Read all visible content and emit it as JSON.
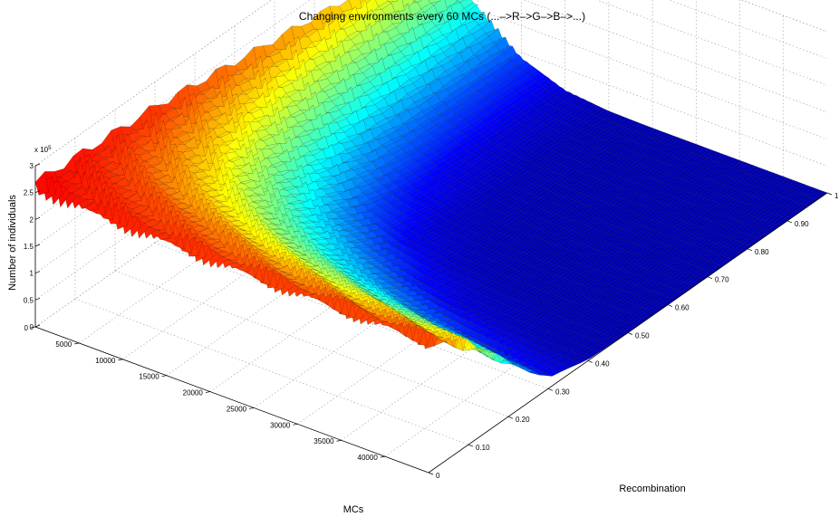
{
  "chart_data": {
    "type": "surface",
    "title": "Changing environments every 60 MCs (...–>R–>G–>B–>...)",
    "xlabel": "MCs",
    "ylabel": "Recombination",
    "zlabel": "Number of individuals",
    "z_exponent_label": "x 10",
    "z_exponent_power": "5",
    "xlim": [
      0,
      45000
    ],
    "ylim": [
      0,
      1.0
    ],
    "zlim": [
      0,
      300000
    ],
    "x_ticks": [
      "0",
      "5000",
      "10000",
      "15000",
      "20000",
      "25000",
      "30000",
      "35000",
      "40000"
    ],
    "x_tick_values": [
      0,
      5000,
      10000,
      15000,
      20000,
      25000,
      30000,
      35000,
      40000
    ],
    "y_ticks": [
      "0",
      "0.10",
      "0.20",
      "0.30",
      "0.40",
      "0.50",
      "0.60",
      "0.70",
      "0.80",
      "0.90",
      "1.00"
    ],
    "y_tick_values": [
      0,
      0.1,
      0.2,
      0.3,
      0.4,
      0.5,
      0.6,
      0.7,
      0.8,
      0.9,
      1.0
    ],
    "z_ticks": [
      "0",
      "0.5",
      "1",
      "1.5",
      "2",
      "2.5",
      "3"
    ],
    "z_tick_values": [
      0,
      50000,
      100000,
      150000,
      200000,
      250000,
      300000
    ],
    "grid": true,
    "colormap": "jet",
    "series": [
      {
        "recombination": 0.0,
        "MCs": [
          0,
          5000,
          10000,
          15000,
          20000,
          25000,
          30000,
          35000,
          40000,
          45000
        ],
        "values": [
          260000,
          255000,
          252000,
          250000,
          248000,
          247000,
          246000,
          246000,
          245000,
          245000
        ]
      },
      {
        "recombination": 0.1,
        "MCs": [
          0,
          5000,
          10000,
          15000,
          20000,
          25000,
          30000,
          35000,
          40000,
          45000
        ],
        "values": [
          255000,
          245000,
          235000,
          225000,
          215000,
          205000,
          198000,
          192000,
          188000,
          185000
        ]
      },
      {
        "recombination": 0.2,
        "MCs": [
          0,
          5000,
          10000,
          15000,
          20000,
          25000,
          30000,
          35000,
          40000,
          45000
        ],
        "values": [
          250000,
          225000,
          200000,
          180000,
          160000,
          145000,
          130000,
          120000,
          110000,
          100000
        ]
      },
      {
        "recombination": 0.3,
        "MCs": [
          0,
          5000,
          10000,
          15000,
          20000,
          25000,
          30000,
          35000,
          40000,
          45000
        ],
        "values": [
          245000,
          205000,
          165000,
          130000,
          100000,
          75000,
          55000,
          40000,
          30000,
          20000
        ]
      },
      {
        "recombination": 0.4,
        "MCs": [
          0,
          5000,
          10000,
          15000,
          20000,
          25000,
          30000,
          35000,
          40000,
          45000
        ],
        "values": [
          235000,
          185000,
          130000,
          85000,
          55000,
          30000,
          15000,
          8000,
          4000,
          2000
        ]
      },
      {
        "recombination": 0.5,
        "MCs": [
          0,
          5000,
          10000,
          15000,
          20000,
          25000,
          30000,
          35000,
          40000,
          45000
        ],
        "values": [
          225000,
          165000,
          100000,
          50000,
          20000,
          8000,
          3000,
          1000,
          500,
          0
        ]
      },
      {
        "recombination": 0.6,
        "MCs": [
          0,
          5000,
          10000,
          15000,
          20000,
          25000,
          30000,
          35000,
          40000,
          45000
        ],
        "values": [
          215000,
          145000,
          75000,
          30000,
          8000,
          2000,
          500,
          0,
          0,
          0
        ]
      },
      {
        "recombination": 0.7,
        "MCs": [
          0,
          5000,
          10000,
          15000,
          20000,
          25000,
          30000,
          35000,
          40000,
          45000
        ],
        "values": [
          205000,
          130000,
          60000,
          20000,
          5000,
          1000,
          0,
          0,
          0,
          0
        ]
      },
      {
        "recombination": 0.8,
        "MCs": [
          0,
          5000,
          10000,
          15000,
          20000,
          25000,
          30000,
          35000,
          40000,
          45000
        ],
        "values": [
          195000,
          120000,
          50000,
          15000,
          3000,
          500,
          0,
          0,
          0,
          0
        ]
      },
      {
        "recombination": 0.9,
        "MCs": [
          0,
          5000,
          10000,
          15000,
          20000,
          25000,
          30000,
          35000,
          40000,
          45000
        ],
        "values": [
          180000,
          110000,
          45000,
          12000,
          2000,
          0,
          0,
          0,
          0,
          0
        ]
      },
      {
        "recombination": 1.0,
        "MCs": [
          0,
          5000,
          10000,
          15000,
          20000,
          25000,
          30000,
          35000,
          40000,
          45000
        ],
        "values": [
          170000,
          105000,
          40000,
          10000,
          1500,
          0,
          0,
          0,
          0,
          0
        ]
      }
    ]
  }
}
